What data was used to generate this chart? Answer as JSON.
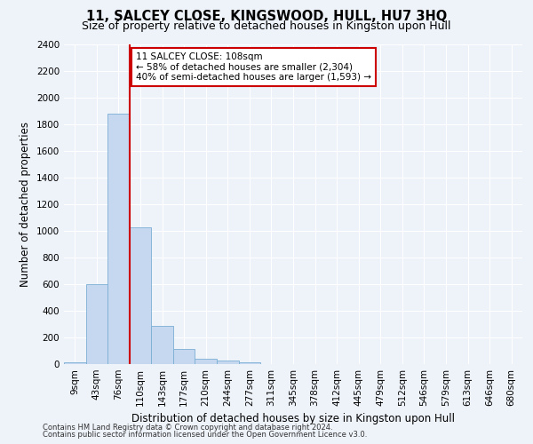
{
  "title": "11, SALCEY CLOSE, KINGSWOOD, HULL, HU7 3HQ",
  "subtitle": "Size of property relative to detached houses in Kingston upon Hull",
  "xlabel": "Distribution of detached houses by size in Kingston upon Hull",
  "ylabel": "Number of detached properties",
  "footnote1": "Contains HM Land Registry data © Crown copyright and database right 2024.",
  "footnote2": "Contains public sector information licensed under the Open Government Licence v3.0.",
  "bin_labels": [
    "9sqm",
    "43sqm",
    "76sqm",
    "110sqm",
    "143sqm",
    "177sqm",
    "210sqm",
    "244sqm",
    "277sqm",
    "311sqm",
    "345sqm",
    "378sqm",
    "412sqm",
    "445sqm",
    "479sqm",
    "512sqm",
    "546sqm",
    "579sqm",
    "613sqm",
    "646sqm",
    "680sqm"
  ],
  "bar_values": [
    15,
    600,
    1880,
    1030,
    290,
    115,
    40,
    25,
    15,
    0,
    0,
    0,
    0,
    0,
    0,
    0,
    0,
    0,
    0,
    0
  ],
  "ylim": [
    0,
    2400
  ],
  "yticks": [
    0,
    200,
    400,
    600,
    800,
    1000,
    1200,
    1400,
    1600,
    1800,
    2000,
    2200,
    2400
  ],
  "bar_color": "#c5d8f0",
  "bar_edge_color": "#7bafd4",
  "vline_color": "#cc0000",
  "annotation_title": "11 SALCEY CLOSE: 108sqm",
  "annotation_line2": "← 58% of detached houses are smaller (2,304)",
  "annotation_line3": "40% of semi-detached houses are larger (1,593) →",
  "annotation_box_color": "#ffffff",
  "annotation_box_edge": "#cc0000",
  "bg_color": "#eef2f9",
  "grid_color": "#ffffff",
  "title_fontsize": 10.5,
  "subtitle_fontsize": 9,
  "axis_label_fontsize": 8.5,
  "tick_fontsize": 7.5,
  "footnote_fontsize": 6.0
}
